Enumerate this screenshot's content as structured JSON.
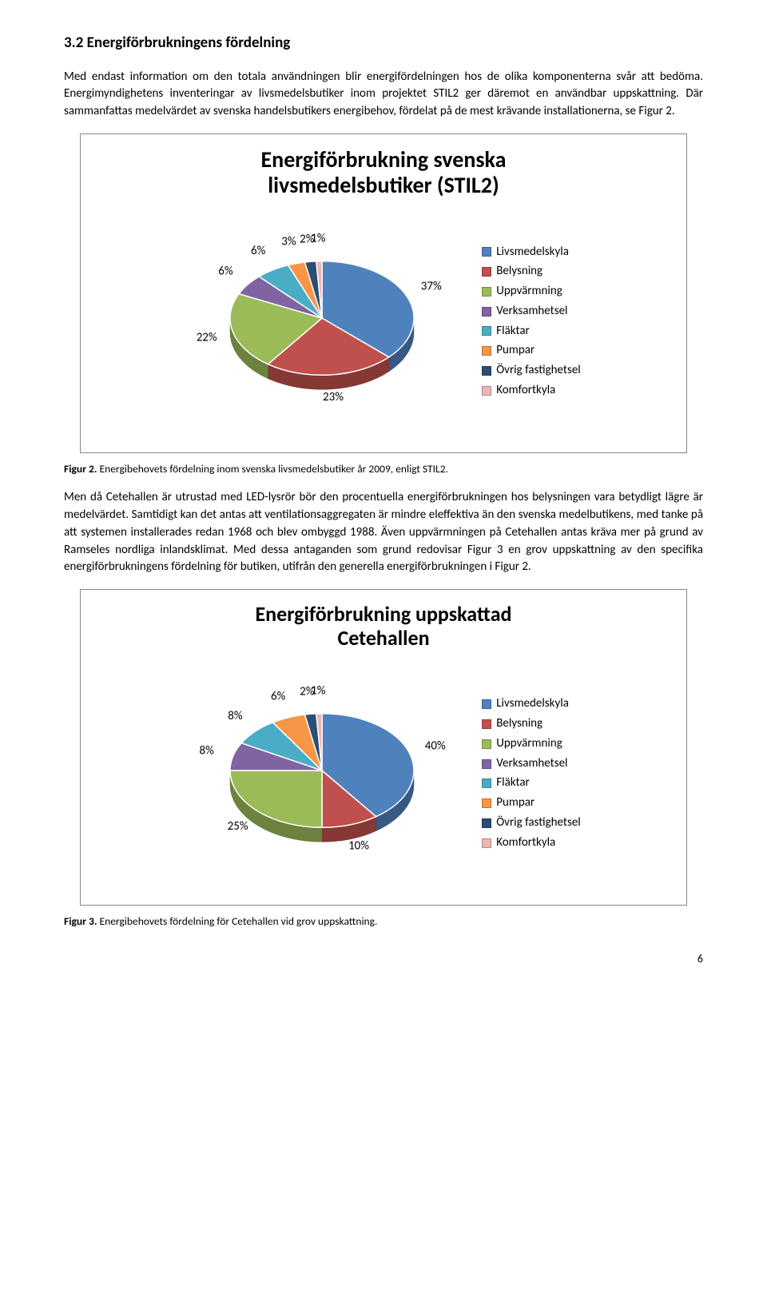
{
  "section": {
    "heading": "3.2 Energiförbrukningens fördelning",
    "para1": "Med endast information om den totala användningen blir energifördelningen hos de olika komponenterna svår att bedöma. Energimyndighetens inventeringar av livsmedelsbutiker inom projektet STIL2 ger däremot en användbar uppskattning. Där sammanfattas medelvärdet av svenska handelsbutikers energibehov, fördelat på de mest krävande installationerna, se Figur 2.",
    "para2": "Men då Cetehallen är utrustad med LED-lysrör bör den procentuella energiförbrukningen hos belysningen vara betydligt lägre är medelvärdet. Samtidigt kan det antas att ventilationsaggregaten är mindre eleffektiva än den svenska medelbutikens, med tanke på att systemen installerades redan 1968 och blev ombyggd 1988. Även uppvärmningen på Cetehallen antas kräva mer på grund av Ramseles nordliga inlandsklimat. Med dessa antaganden som grund redovisar Figur 3 en grov uppskattning av den specifika energiförbrukningens fördelning för butiken, utifrån den generella energiförbrukningen i Figur 2."
  },
  "chart1": {
    "type": "pie",
    "title_l1": "Energiförbrukning svenska",
    "title_l2": "livsmedelsbutiker (STIL2)",
    "title_fontsize": 28,
    "pie_radius": 115,
    "background_color": "#ffffff",
    "border_color": "#888888",
    "slice_border": "#ffffff",
    "slices": [
      {
        "label": "Livsmedelskyla",
        "value": 37,
        "color": "#4f81bd",
        "pct": "37%"
      },
      {
        "label": "Belysning",
        "value": 23,
        "color": "#c0504d",
        "pct": "23%"
      },
      {
        "label": "Uppvärmning",
        "value": 22,
        "color": "#9bbb59",
        "pct": "22%"
      },
      {
        "label": "Verksamhetsel",
        "value": 6,
        "color": "#8064a2",
        "pct": "6%"
      },
      {
        "label": "Fläktar",
        "value": 6,
        "color": "#4bacc6",
        "pct": "6%"
      },
      {
        "label": "Pumpar",
        "value": 3,
        "color": "#f79646",
        "pct": "3%"
      },
      {
        "label": "Övrig fastighetsel",
        "value": 2,
        "color": "#2c4d75",
        "pct": "2%"
      },
      {
        "label": "Komfortkyla",
        "value": 1,
        "color": "#eeb4b3",
        "pct": "1%"
      }
    ],
    "label_fontsize": 15,
    "legend_fontsize": 15,
    "legend_position": "right"
  },
  "caption1": {
    "bold": "Figur 2.",
    "text": " Energibehovets fördelning inom svenska livsmedelsbutiker år 2009, enligt STIL2."
  },
  "chart2": {
    "type": "pie",
    "title_l1": "Energiförbrukning uppskattad",
    "title_l2": "Cetehallen",
    "title_fontsize": 26,
    "pie_radius": 115,
    "background_color": "#ffffff",
    "border_color": "#888888",
    "slice_border": "#ffffff",
    "slices": [
      {
        "label": "Livsmedelskyla",
        "value": 40,
        "color": "#4f81bd",
        "pct": "40%"
      },
      {
        "label": "Belysning",
        "value": 10,
        "color": "#c0504d",
        "pct": "10%"
      },
      {
        "label": "Uppvärmning",
        "value": 25,
        "color": "#9bbb59",
        "pct": "25%"
      },
      {
        "label": "Verksamhetsel",
        "value": 8,
        "color": "#8064a2",
        "pct": "8%"
      },
      {
        "label": "Fläktar",
        "value": 8,
        "color": "#4bacc6",
        "pct": "8%"
      },
      {
        "label": "Pumpar",
        "value": 6,
        "color": "#f79646",
        "pct": "6%"
      },
      {
        "label": "Övrig fastighetsel",
        "value": 2,
        "color": "#2c4d75",
        "pct": "2%"
      },
      {
        "label": "Komfortkyla",
        "value": 1,
        "color": "#eeb4b3",
        "pct": "1%"
      }
    ],
    "label_fontsize": 15,
    "legend_fontsize": 15,
    "legend_position": "right"
  },
  "caption2": {
    "bold": "Figur 3.",
    "text": " Energibehovets fördelning för Cetehallen vid grov uppskattning."
  },
  "page_number": "6"
}
